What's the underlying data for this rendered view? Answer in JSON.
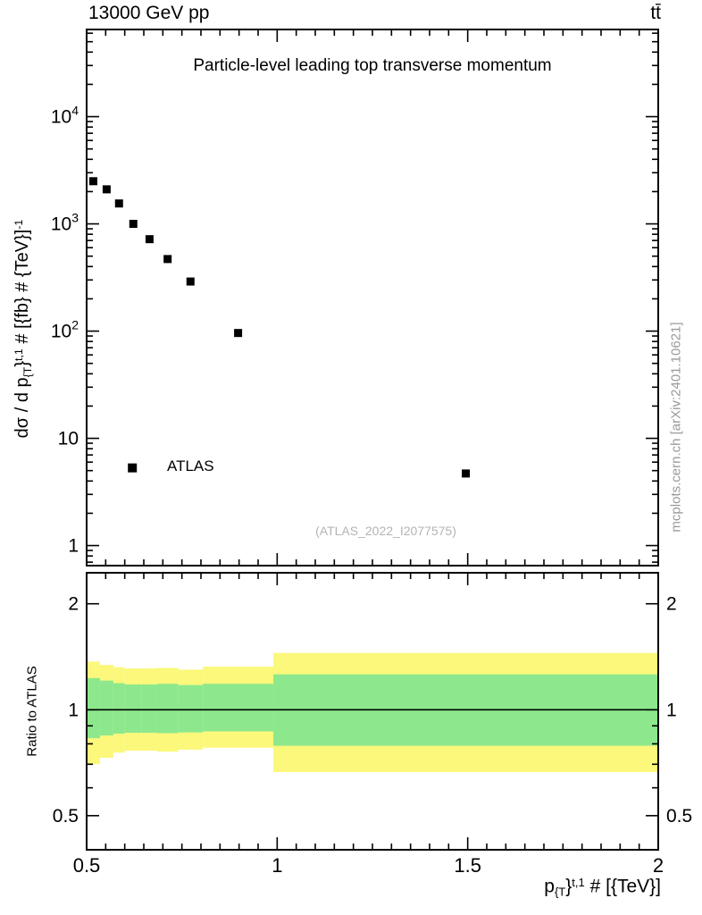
{
  "chart_data": {
    "type": "scatter",
    "title": "Particle-level leading top transverse momentum",
    "header": {
      "left": "13000 GeV pp",
      "right": "tt̄"
    },
    "watermark": "(ATLAS_2022_I2077575)",
    "side_caption": "mcplots.cern.ch [arXiv:2401.10621]",
    "xlabel": {
      "p1": "p",
      "sub": "{T",
      "p2": "}",
      "sup": "t,1",
      "p3": " # [{TeV}]"
    },
    "ylabel": {
      "p1": "dσ / d p",
      "sub": "{T",
      "p2": "}",
      "sup": "t,1",
      "p3": " # [{fb} # {TeV}]",
      "sup2": "-1"
    },
    "legend": {
      "label": "ATLAS",
      "marker": "filled-square",
      "marker_color": "#000000",
      "x": 0.62,
      "y": 5.3
    },
    "x_axis": {
      "lim": [
        0.5,
        2.0
      ],
      "scale": "linear",
      "major_ticks": [
        0.5,
        1.0,
        1.5,
        2.0
      ],
      "minor_step": 0.05,
      "tick_labels": [
        {
          "value": 0.5,
          "label": "0.5"
        },
        {
          "value": 1.0,
          "label": "1"
        },
        {
          "value": 1.5,
          "label": "1.5"
        },
        {
          "value": 2.0,
          "label": "2"
        }
      ]
    },
    "top_panel": {
      "yscale": "log",
      "ylim": [
        0.65,
        65000
      ],
      "y_tick_labels": [
        {
          "value": 1,
          "base": "1"
        },
        {
          "value": 10,
          "base": "10"
        },
        {
          "value": 100,
          "base": "10",
          "sup": "2"
        },
        {
          "value": 1000,
          "base": "10",
          "sup": "3"
        },
        {
          "value": 10000,
          "base": "10",
          "sup": "4"
        }
      ],
      "series": [
        {
          "name": "ATLAS",
          "marker": "filled-square",
          "color": "#000000",
          "points": [
            [
              0.5175,
              2500
            ],
            [
              0.5525,
              2100
            ],
            [
              0.585,
              1550
            ],
            [
              0.6225,
              1000
            ],
            [
              0.665,
              720
            ],
            [
              0.7125,
              470
            ],
            [
              0.7725,
              290
            ],
            [
              0.8975,
              96
            ],
            [
              1.495,
              4.7
            ]
          ]
        }
      ]
    },
    "ratio_panel": {
      "ylabel": "Ratio to ATLAS",
      "yscale": "log",
      "ylim": [
        0.4,
        2.45
      ],
      "reference_line": 1.0,
      "y_tick_labels": [
        {
          "value": 0.5,
          "label": "0.5"
        },
        {
          "value": 1,
          "label": "1"
        },
        {
          "value": 2,
          "label": "2"
        }
      ],
      "band_colors": {
        "outer": "#fbf87b",
        "inner": "#8de88d"
      },
      "bands": [
        {
          "x0": 0.5,
          "x1": 0.535,
          "outer": [
            0.7,
            1.37
          ],
          "inner": [
            0.83,
            1.23
          ]
        },
        {
          "x0": 0.535,
          "x1": 0.57,
          "outer": [
            0.73,
            1.34
          ],
          "inner": [
            0.845,
            1.21
          ]
        },
        {
          "x0": 0.57,
          "x1": 0.6,
          "outer": [
            0.755,
            1.32
          ],
          "inner": [
            0.855,
            1.19
          ]
        },
        {
          "x0": 0.6,
          "x1": 0.645,
          "outer": [
            0.765,
            1.31
          ],
          "inner": [
            0.86,
            1.18
          ]
        },
        {
          "x0": 0.645,
          "x1": 0.685,
          "outer": [
            0.765,
            1.31
          ],
          "inner": [
            0.86,
            1.18
          ]
        },
        {
          "x0": 0.685,
          "x1": 0.74,
          "outer": [
            0.76,
            1.315
          ],
          "inner": [
            0.858,
            1.185
          ]
        },
        {
          "x0": 0.74,
          "x1": 0.805,
          "outer": [
            0.77,
            1.3
          ],
          "inner": [
            0.862,
            1.175
          ]
        },
        {
          "x0": 0.805,
          "x1": 0.99,
          "outer": [
            0.78,
            1.325
          ],
          "inner": [
            0.868,
            1.185
          ]
        },
        {
          "x0": 0.99,
          "x1": 2.0,
          "outer": [
            0.665,
            1.45
          ],
          "inner": [
            0.79,
            1.26
          ]
        }
      ]
    }
  }
}
